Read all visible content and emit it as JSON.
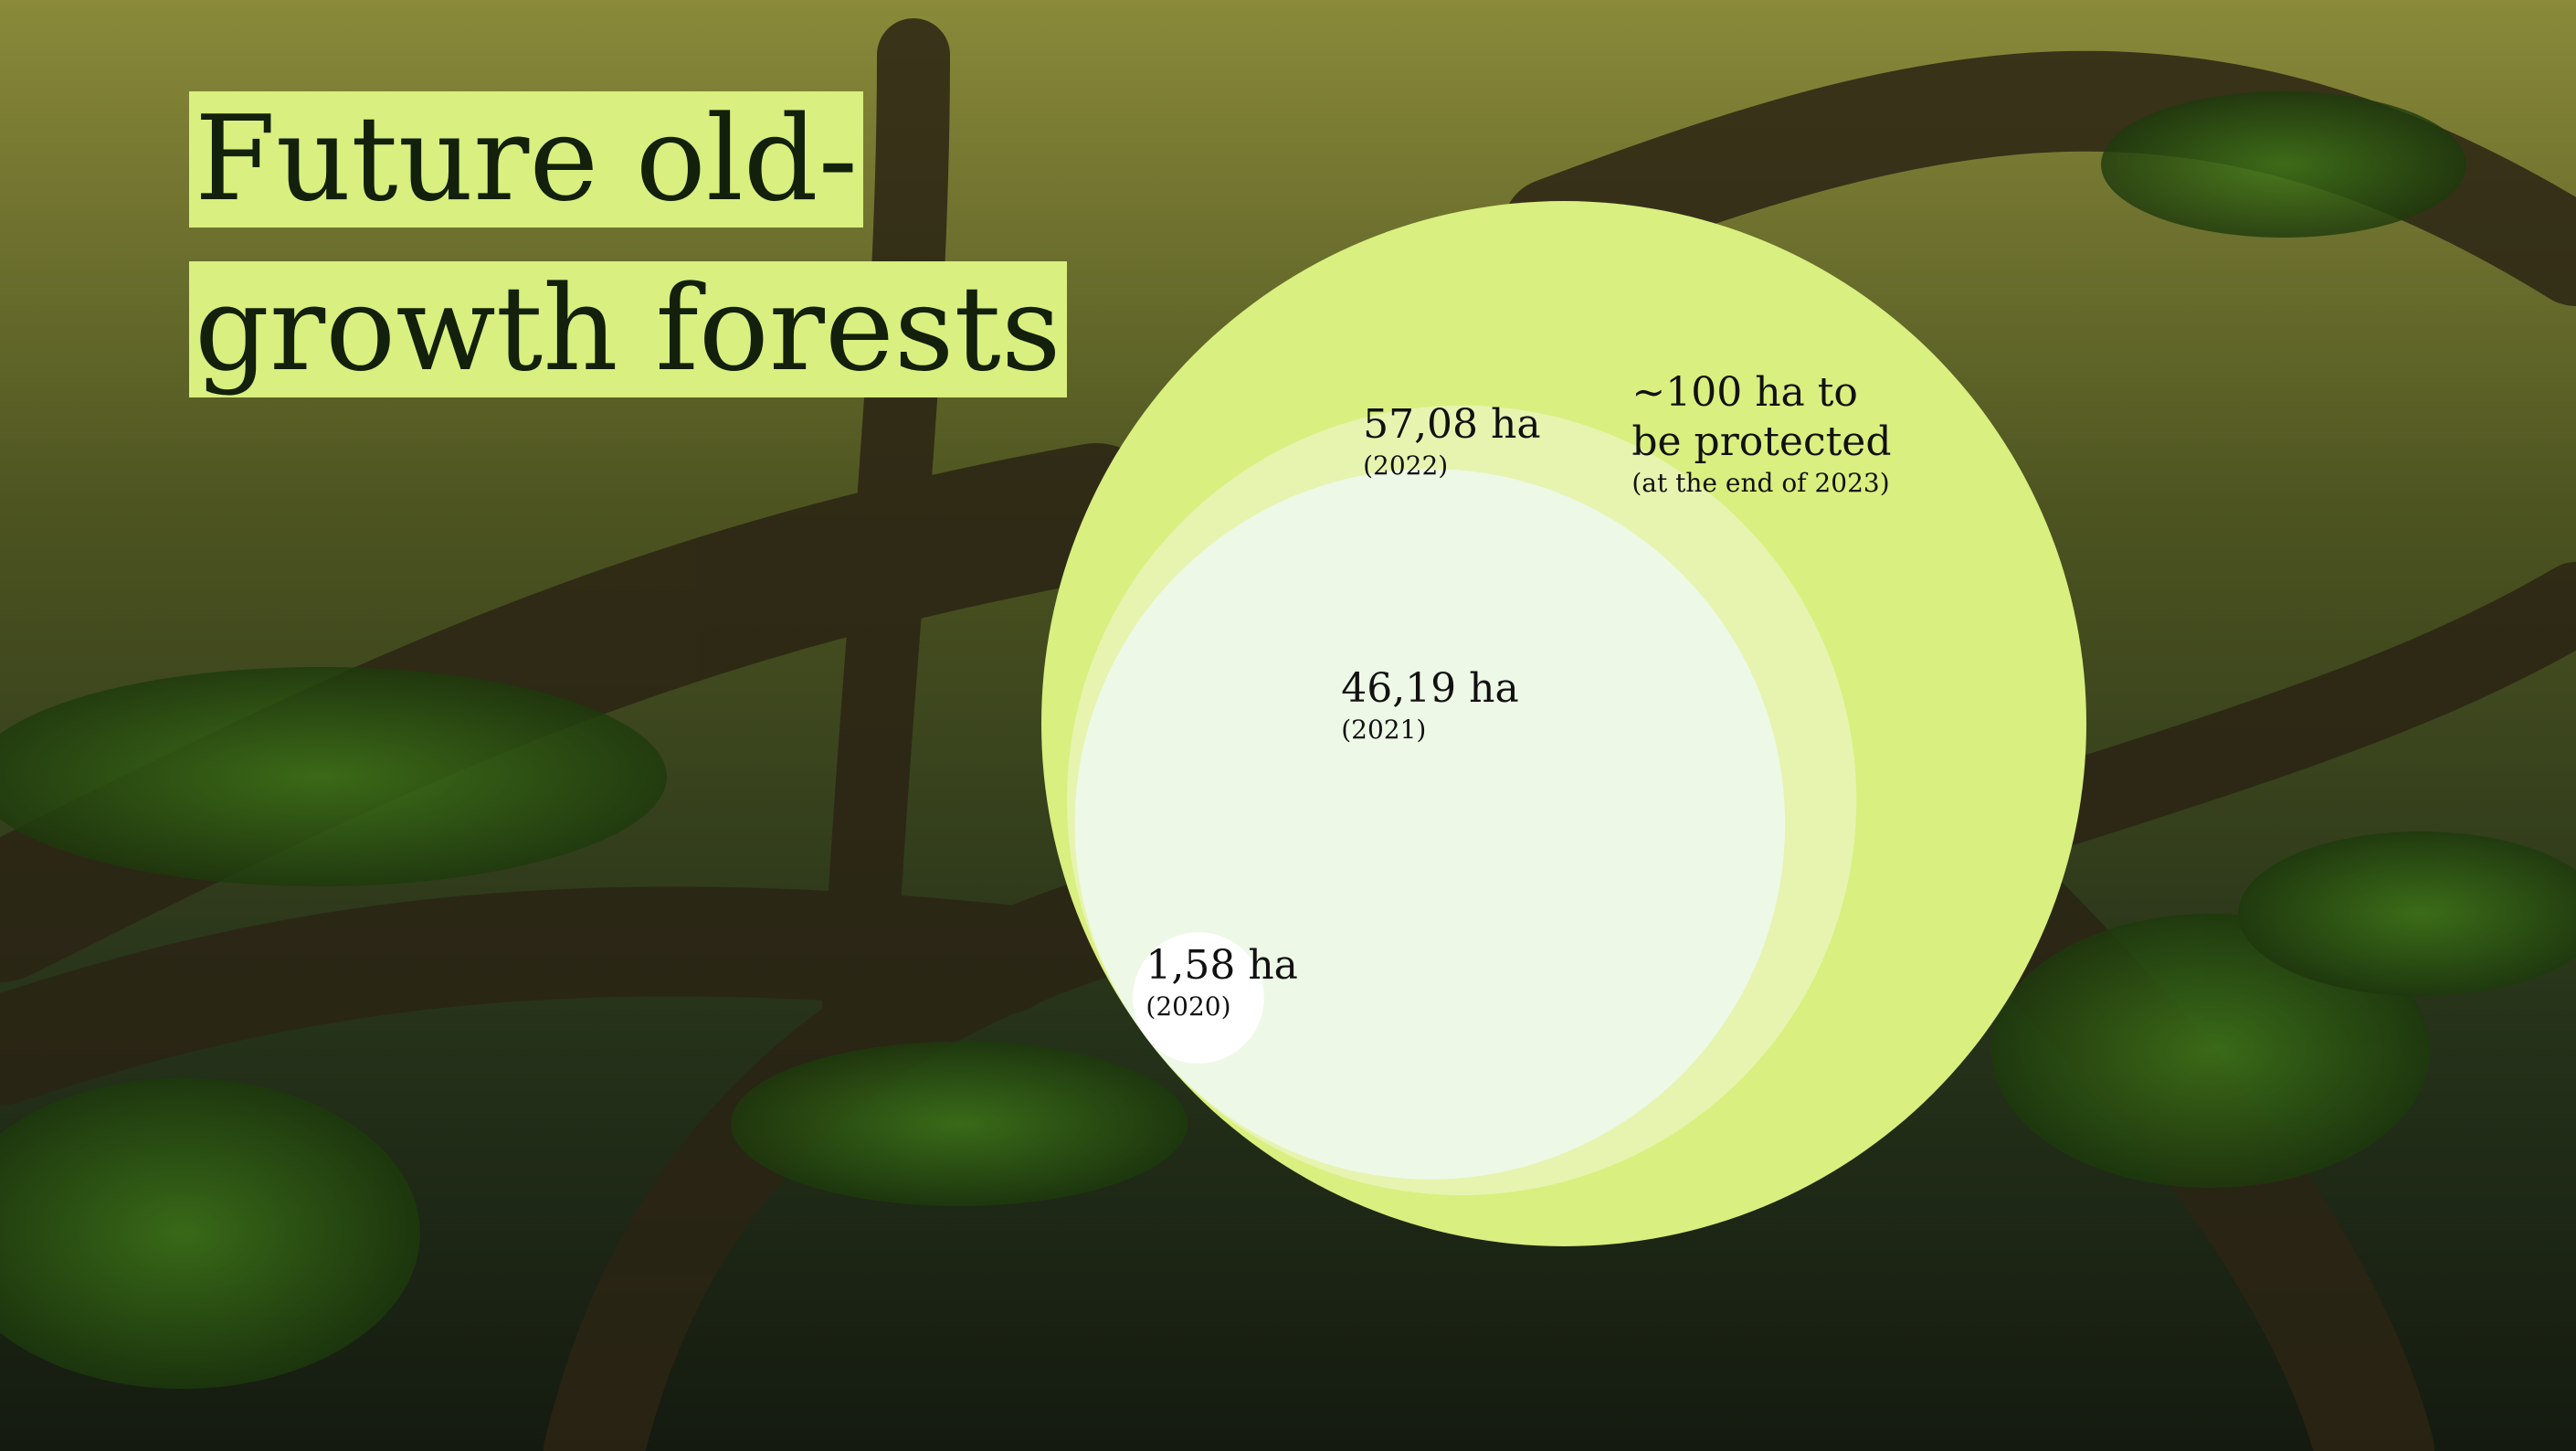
{
  "chart_data": {
    "type": "nested-bubble",
    "title": "Future old-growth forests",
    "categories": [
      "(2020)",
      "(2021)",
      "(2022)",
      "(at the end of 2023)"
    ],
    "values": [
      1.58,
      46.19,
      57.08,
      100
    ],
    "value_labels": [
      "1,58 ha",
      "46,19 ha",
      "57,08 ha",
      "~100 ha to be protected"
    ],
    "colors": [
      "#ffffff",
      "#eef8e6",
      "#e6f4b0",
      "#d9ef7f"
    ]
  }
}
